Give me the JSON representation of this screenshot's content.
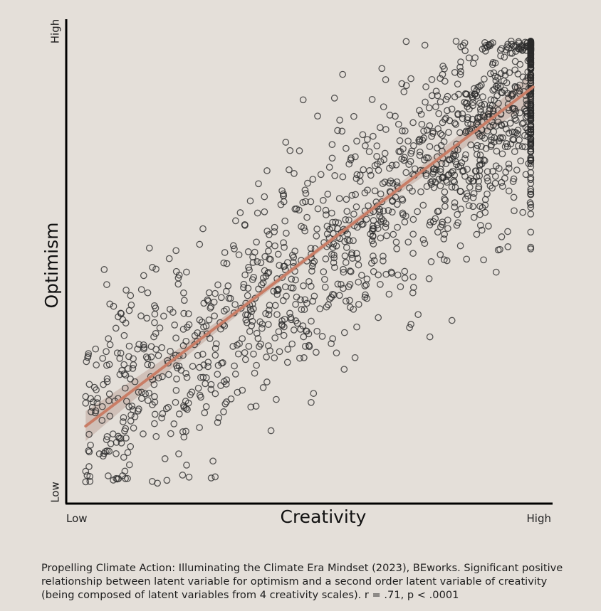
{
  "chart_data": {
    "type": "scatter",
    "xlabel": "Creativity",
    "ylabel": "Optimism",
    "x_ticks": {
      "low": "Low",
      "high": "High"
    },
    "y_ticks": {
      "low": "Low",
      "high": "High"
    },
    "xlim": [
      0,
      1
    ],
    "ylim": [
      0,
      1
    ],
    "grid": false,
    "legend": "none",
    "colors": {
      "points": "#2a2a2a",
      "fit_line": "#c97d66",
      "fit_band": "#b89b91",
      "background": "#e4dfd9"
    },
    "n_points": 1500,
    "correlation_r": 0.71,
    "fit_line": {
      "x": [
        0.04,
        0.96
      ],
      "y": [
        0.16,
        0.86
      ]
    }
  },
  "caption": "Propelling Climate Action: Illuminating the Climate Era Mindset (2023), BEworks. Significant positive relationship between latent variable for optimism and a second order latent variable of creativity (being composed of latent variables from 4 creativity scales). r = .71, p < .0001"
}
